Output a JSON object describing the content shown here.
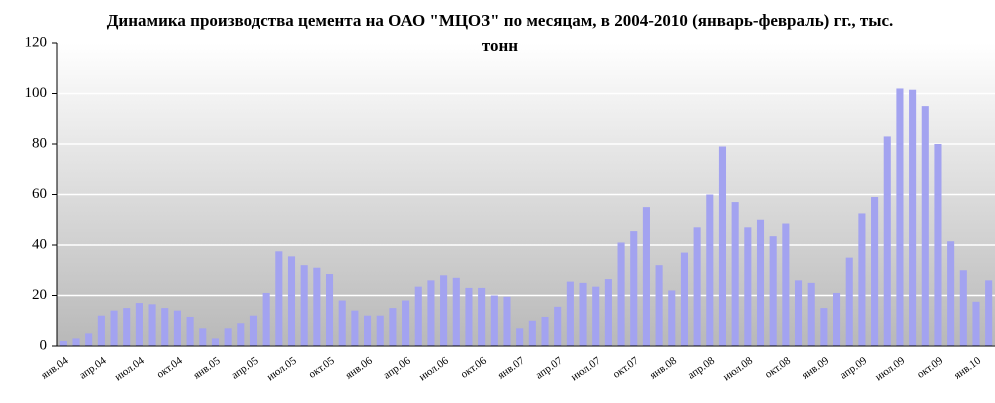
{
  "chart_data": {
    "type": "bar",
    "title": "Динамика производства цемента на ОАО \"МЦОЗ\" по месяцам, в 2004-2010 (январь-февраль) гг., тыс. тонн",
    "categories": [
      "янв.04",
      null,
      null,
      "апр.04",
      null,
      null,
      "июл.04",
      null,
      null,
      "окт.04",
      null,
      null,
      "янв.05",
      null,
      null,
      "апр.05",
      null,
      null,
      "июл.05",
      null,
      null,
      "окт.05",
      null,
      null,
      "янв.06",
      null,
      null,
      "апр.06",
      null,
      null,
      "июл.06",
      null,
      null,
      "окт.06",
      null,
      null,
      "янв.07",
      null,
      null,
      "апр.07",
      null,
      null,
      "июл.07",
      null,
      null,
      "окт.07",
      null,
      null,
      "янв.08",
      null,
      null,
      "апр.08",
      null,
      null,
      "июл.08",
      null,
      null,
      "окт.08",
      null,
      null,
      "янв.09",
      null,
      null,
      "апр.09",
      null,
      null,
      "июл.09",
      null,
      null,
      "окт.09",
      null,
      null,
      "янв.10",
      null
    ],
    "values": [
      2,
      3,
      5,
      12,
      14,
      15,
      17,
      16.5,
      15,
      14,
      11.5,
      7,
      3,
      7,
      9,
      12,
      21,
      37.5,
      35.5,
      32,
      31,
      28.5,
      18,
      14,
      12,
      12,
      15,
      18,
      23.5,
      26,
      28,
      27,
      23,
      23,
      20,
      19.5,
      7,
      10,
      11.5,
      15.5,
      25.5,
      25,
      23.5,
      26.5,
      41,
      45.5,
      55,
      32,
      22,
      37,
      47,
      60,
      79,
      57,
      47,
      50,
      43.5,
      48.5,
      26,
      25,
      15,
      21,
      35,
      52.5,
      59,
      83,
      102,
      101.5,
      95,
      80,
      41.5,
      30,
      17.5,
      26
    ],
    "color": "#a3a3f0",
    "ylim": [
      0,
      120
    ],
    "yticks": [
      0,
      20,
      40,
      60,
      80,
      100,
      120
    ],
    "grid": true
  }
}
